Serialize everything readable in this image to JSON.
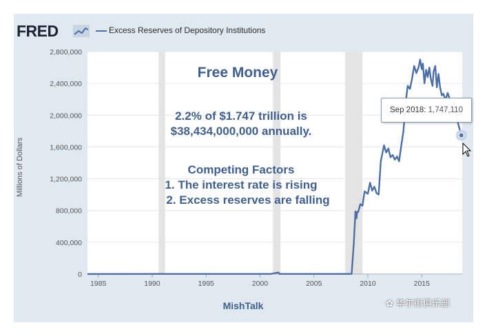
{
  "header": {
    "brand": "FRED",
    "brand_icon": "line-chart-icon",
    "series_title": "Excess Reserves of Depository Institutions"
  },
  "annotations": {
    "title": "Free Money",
    "line1": "2.2% of $1.747 trillion is",
    "line2": "$38,434,000,000 annually.",
    "line3": "Competing Factors",
    "line4": "1. The interest rate is rising",
    "line5": "2. Excess reserves are falling"
  },
  "tooltip": {
    "date": "Sep 2018:",
    "value": "1,747,110"
  },
  "source": "MishTalk",
  "watermark": "华尔街俱乐部",
  "colors": {
    "line": "#4b6ea7",
    "recession": "#e4e4e4",
    "frame": "#e1e9f0",
    "annotation": "#3f5f8f"
  },
  "chart_data": {
    "type": "line",
    "title": "Excess Reserves of Depository Institutions",
    "ylabel": "Millions of Dollars",
    "xlabel": "",
    "xlim": [
      1984,
      2018.75
    ],
    "ylim": [
      0,
      2800000
    ],
    "xticks": [
      1985,
      1990,
      1995,
      2000,
      2005,
      2010,
      2015
    ],
    "xtick_labels": [
      "1985",
      "1990",
      "1995",
      "2000",
      "2005",
      "2010",
      "2015"
    ],
    "yticks": [
      0,
      400000,
      800000,
      1200000,
      1600000,
      2000000,
      2400000,
      2800000
    ],
    "ytick_labels": [
      "0",
      "400,000",
      "800,000",
      "1,200,000",
      "1,600,000",
      "2,000,000",
      "2,400,000",
      "2,800,000"
    ],
    "grid": true,
    "recessions": [
      [
        1990.6,
        1991.2
      ],
      [
        2001.2,
        2001.9
      ],
      [
        2007.9,
        2009.5
      ]
    ],
    "series": [
      {
        "name": "Excess Reserves of Depository Institutions",
        "x": [
          1984,
          1990,
          2000,
          2001.0,
          2001.7,
          2001.8,
          2002.0,
          2007.0,
          2008.5,
          2008.7,
          2008.85,
          2008.95,
          2009.0,
          2009.1,
          2009.3,
          2009.5,
          2009.7,
          2010.0,
          2010.2,
          2010.4,
          2010.6,
          2010.8,
          2011.0,
          2011.2,
          2011.5,
          2011.7,
          2011.9,
          2012.1,
          2012.3,
          2012.5,
          2012.7,
          2012.9,
          2013.1,
          2013.3,
          2013.5,
          2013.7,
          2013.9,
          2014.1,
          2014.3,
          2014.5,
          2014.7,
          2014.85,
          2015.0,
          2015.1,
          2015.25,
          2015.4,
          2015.55,
          2015.7,
          2015.85,
          2016.0,
          2016.1,
          2016.25,
          2016.4,
          2016.55,
          2016.7,
          2016.85,
          2017.0,
          2017.2,
          2017.4,
          2017.6,
          2017.8,
          2018.0,
          2018.2,
          2018.4,
          2018.67
        ],
        "values": [
          1000,
          1500,
          1500,
          2000,
          19000,
          2000,
          1500,
          2000,
          2000,
          400000,
          790000,
          700000,
          780000,
          780000,
          880000,
          860000,
          1040000,
          1010000,
          1150000,
          1050000,
          1100000,
          1020000,
          1000000,
          1420000,
          1620000,
          1530000,
          1580000,
          1470000,
          1500000,
          1440000,
          1480000,
          1420000,
          1620000,
          1800000,
          2150000,
          2370000,
          2330000,
          2460000,
          2620000,
          2530000,
          2600000,
          2700000,
          2580000,
          2650000,
          2400000,
          2570000,
          2480000,
          2600000,
          2450000,
          2370000,
          2550000,
          2620000,
          2350000,
          2520000,
          2350000,
          2250000,
          2270000,
          2190000,
          2280000,
          2200000,
          2100000,
          2170000,
          2000000,
          1880000,
          1747110
        ]
      }
    ]
  }
}
